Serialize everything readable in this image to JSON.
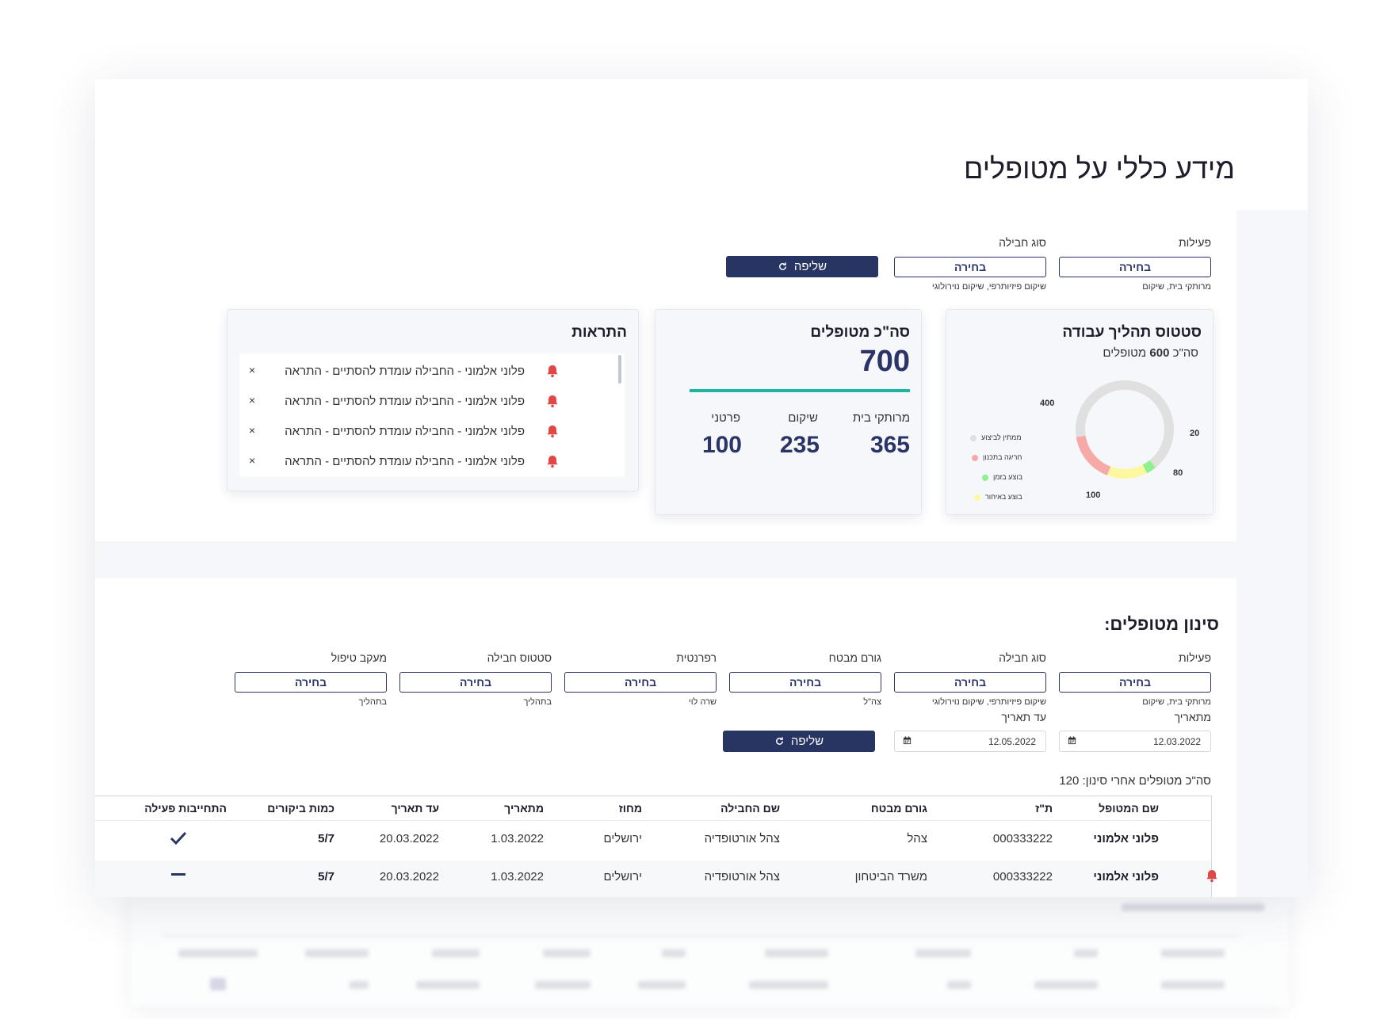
{
  "page": {
    "title": "מידע כללי על מטופלים"
  },
  "top_filters": {
    "activity": {
      "label": "פעילות",
      "value": "בחירה",
      "hint": "מרותקי בית, שיקום"
    },
    "package_type": {
      "label": "סוג חבילה",
      "value": "בחירה",
      "hint": "שיקום פיזיותרפי, שיקום נוירולוגי"
    },
    "fetch_label": "שליפה"
  },
  "status_card": {
    "title": "סטטוס תהליך עבודה",
    "subtitle_prefix": "סה\"כ",
    "subtitle_total": "600",
    "subtitle_suffix": "מטופלים",
    "legend": [
      {
        "label": "ממתין לביצוע",
        "color": "#e0e0e0"
      },
      {
        "label": "חריגה בתכנון",
        "color": "#f7a9a8"
      },
      {
        "label": "בוצע בזמן",
        "color": "#8ff08f"
      },
      {
        "label": "בוצע באיחור",
        "color": "#fdf7a0"
      }
    ]
  },
  "chart_data": {
    "type": "pie",
    "title": "סטטוס תהליך עבודה",
    "categories": [
      "ממתין לביצוע",
      "בוצע בזמן",
      "בוצע באיחור",
      "חריגה בתכנון"
    ],
    "values": [
      400,
      20,
      80,
      100
    ],
    "colors": [
      "#e0e0e0",
      "#8ff08f",
      "#fdf7a0",
      "#f7a9a8"
    ],
    "labels": [
      "400",
      "20",
      "80",
      "100"
    ]
  },
  "total_card": {
    "title": "סה\"כ מטופלים",
    "total": "700",
    "stats": [
      {
        "label": "מרותקי בית",
        "value": "365"
      },
      {
        "label": "שיקום",
        "value": "235"
      },
      {
        "label": "פרטני",
        "value": "100"
      }
    ]
  },
  "alerts_card": {
    "title": "התראות",
    "items": [
      {
        "text": "פלוני אלמוני - החבילה עומדת להסתיים - התראה"
      },
      {
        "text": "פלוני אלמוני - החבילה עומדת להסתיים - התראה"
      },
      {
        "text": "פלוני אלמוני - החבילה עומדת להסתיים - התראה"
      },
      {
        "text": "פלוני אלמוני - החבילה עומדת להסתיים - התראה"
      }
    ],
    "close_symbol": "×"
  },
  "filter_section": {
    "title": "סינון מטופלים:",
    "filters": [
      {
        "label": "פעילות",
        "value": "בחירה",
        "hint": "מרותקי בית, שיקום"
      },
      {
        "label": "סוג חבילה",
        "value": "בחירה",
        "hint": "שיקום פיזיותרפי, שיקום נוירולוגי"
      },
      {
        "label": "גורם מבטח",
        "value": "בחירה",
        "hint": "צה\"ל"
      },
      {
        "label": "רפרנטית",
        "value": "בחירה",
        "hint": "שרה לוי"
      },
      {
        "label": "סטטוס חבילה",
        "value": "בחירה",
        "hint": "בתהליך"
      },
      {
        "label": "מעקב טיפול",
        "value": "בחירה",
        "hint": "בתהליך"
      }
    ],
    "date_from": {
      "label": "מתאריך",
      "value": "12.03.2022"
    },
    "date_to": {
      "label": "עד תאריך",
      "value": "12.05.2022"
    },
    "fetch_label": "שליפה",
    "total_after_filter": "סה\"כ מטופלים אחרי סינון: 120"
  },
  "table": {
    "columns": [
      "שם המטופל",
      "ת\"ז",
      "גורם מבטח",
      "שם החבילה",
      "מחוז",
      "מתאריך",
      "עד תאריך",
      "כמות ביקורים",
      "התחייבות פעילה"
    ],
    "rows": [
      {
        "name": "פלוני אלמוני",
        "id": "000333222",
        "insurer": "צהל",
        "package": "צהל אורטופדיה",
        "district": "ירושלים",
        "from": "1.03.2022",
        "to": "20.03.2022",
        "visits": "5/7",
        "active": "check",
        "alert": false
      },
      {
        "name": "פלוני אלמוני",
        "id": "000333222",
        "insurer": "משרד הביטחון",
        "package": "צהל אורטופדיה",
        "district": "ירושלים",
        "from": "1.03.2022",
        "to": "20.03.2022",
        "visits": "5/7",
        "active": "dash",
        "alert": true
      }
    ]
  },
  "colors": {
    "primary": "#283563",
    "accent": "#1fb3a3",
    "danger": "#e04848"
  }
}
